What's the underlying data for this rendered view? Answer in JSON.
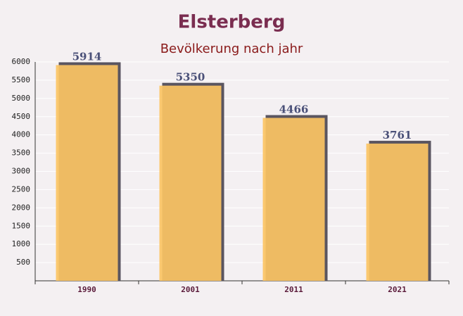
{
  "chart_data": {
    "type": "bar",
    "title": "Elsterberg",
    "subtitle": "Bevölkerung nach jahr",
    "categories": [
      "1990",
      "2001",
      "2011",
      "2021"
    ],
    "values": [
      5914,
      5350,
      4466,
      3761
    ],
    "color": "#fbc464",
    "ylim": [
      0,
      6000
    ],
    "yticks": [
      500,
      1000,
      1500,
      2000,
      2500,
      3000,
      3500,
      4000,
      4500,
      5000,
      5500,
      6000
    ],
    "grid": true
  }
}
